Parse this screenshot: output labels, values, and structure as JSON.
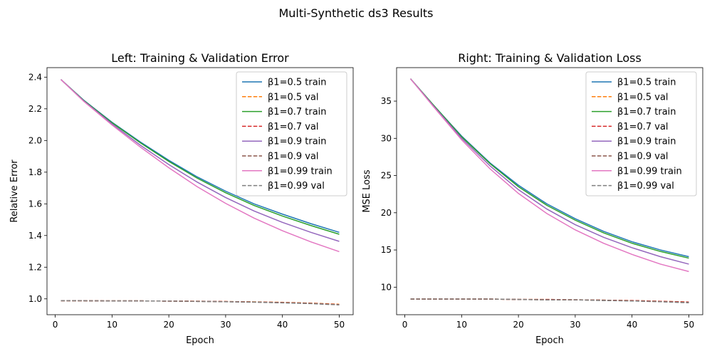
{
  "figure": {
    "title": "Multi-Synthetic ds3 Results"
  },
  "chart_data": [
    {
      "type": "line",
      "title": "Left: Training & Validation Error",
      "xlabel": "Epoch",
      "ylabel": "Relative Error",
      "xlim": [
        -1.45,
        52.45
      ],
      "ylim": [
        0.9,
        2.46
      ],
      "xticks": [
        0,
        10,
        20,
        30,
        40,
        50
      ],
      "yticks": [
        1.0,
        1.2,
        1.4,
        1.6,
        1.8,
        2.0,
        2.2,
        2.4
      ],
      "grid": false,
      "legend_position": "top-right",
      "x": [
        1,
        5,
        10,
        15,
        20,
        25,
        30,
        35,
        40,
        45,
        50
      ],
      "series": [
        {
          "name": "β1=0.5 train",
          "color": "#1f77b4",
          "dash": "solid",
          "values": [
            2.385,
            2.255,
            2.115,
            1.99,
            1.875,
            1.77,
            1.68,
            1.6,
            1.535,
            1.475,
            1.42
          ]
        },
        {
          "name": "β1=0.5 val",
          "color": "#ff7f0e",
          "dash": "dashed",
          "values": [
            0.988,
            0.988,
            0.987,
            0.987,
            0.986,
            0.985,
            0.983,
            0.981,
            0.978,
            0.973,
            0.966
          ]
        },
        {
          "name": "β1=0.7 train",
          "color": "#2ca02c",
          "dash": "solid",
          "values": [
            2.385,
            2.253,
            2.112,
            1.985,
            1.868,
            1.762,
            1.67,
            1.59,
            1.523,
            1.463,
            1.408
          ]
        },
        {
          "name": "β1=0.7 val",
          "color": "#d62728",
          "dash": "dashed",
          "values": [
            0.988,
            0.988,
            0.987,
            0.987,
            0.986,
            0.985,
            0.983,
            0.98,
            0.977,
            0.972,
            0.964
          ]
        },
        {
          "name": "β1=0.9 train",
          "color": "#9467bd",
          "dash": "solid",
          "values": [
            2.385,
            2.25,
            2.105,
            1.97,
            1.848,
            1.737,
            1.64,
            1.555,
            1.483,
            1.42,
            1.363
          ]
        },
        {
          "name": "β1=0.9 val",
          "color": "#8c564b",
          "dash": "dashed",
          "values": [
            0.988,
            0.988,
            0.987,
            0.987,
            0.986,
            0.984,
            0.982,
            0.98,
            0.976,
            0.971,
            0.963
          ]
        },
        {
          "name": "β1=0.99 train",
          "color": "#e377c2",
          "dash": "solid",
          "values": [
            2.385,
            2.248,
            2.098,
            1.958,
            1.828,
            1.708,
            1.603,
            1.51,
            1.43,
            1.36,
            1.298
          ]
        },
        {
          "name": "β1=0.99 val",
          "color": "#7f7f7f",
          "dash": "dashed",
          "values": [
            0.988,
            0.988,
            0.987,
            0.987,
            0.986,
            0.984,
            0.982,
            0.979,
            0.975,
            0.97,
            0.962
          ]
        }
      ]
    },
    {
      "type": "line",
      "title": "Right: Training & Validation Loss",
      "xlabel": "Epoch",
      "ylabel": "MSE Loss",
      "xlim": [
        -1.45,
        52.45
      ],
      "ylim": [
        6.3,
        39.5
      ],
      "xticks": [
        0,
        10,
        20,
        30,
        40,
        50
      ],
      "yticks": [
        10,
        15,
        20,
        25,
        30,
        35
      ],
      "grid": false,
      "legend_position": "top-right",
      "x": [
        1,
        5,
        10,
        15,
        20,
        25,
        30,
        35,
        40,
        45,
        50
      ],
      "series": [
        {
          "name": "β1=0.5 train",
          "color": "#1f77b4",
          "dash": "solid",
          "values": [
            38.0,
            34.5,
            30.3,
            26.7,
            23.7,
            21.2,
            19.2,
            17.5,
            16.1,
            15.0,
            14.1
          ]
        },
        {
          "name": "β1=0.5 val",
          "color": "#ff7f0e",
          "dash": "dashed",
          "values": [
            8.4,
            8.4,
            8.4,
            8.4,
            8.35,
            8.35,
            8.3,
            8.25,
            8.2,
            8.1,
            8.0
          ]
        },
        {
          "name": "β1=0.7 train",
          "color": "#2ca02c",
          "dash": "solid",
          "values": [
            38.0,
            34.5,
            30.2,
            26.6,
            23.5,
            21.0,
            19.0,
            17.3,
            15.9,
            14.8,
            13.9
          ]
        },
        {
          "name": "β1=0.7 val",
          "color": "#d62728",
          "dash": "dashed",
          "values": [
            8.4,
            8.4,
            8.4,
            8.4,
            8.35,
            8.35,
            8.3,
            8.25,
            8.2,
            8.1,
            8.0
          ]
        },
        {
          "name": "β1=0.9 train",
          "color": "#9467bd",
          "dash": "solid",
          "values": [
            38.0,
            34.4,
            30.0,
            26.3,
            23.1,
            20.5,
            18.4,
            16.7,
            15.3,
            14.1,
            13.1
          ]
        },
        {
          "name": "β1=0.9 val",
          "color": "#8c564b",
          "dash": "dashed",
          "values": [
            8.4,
            8.4,
            8.4,
            8.4,
            8.35,
            8.3,
            8.3,
            8.25,
            8.15,
            8.05,
            7.95
          ]
        },
        {
          "name": "β1=0.99 train",
          "color": "#e377c2",
          "dash": "solid",
          "values": [
            38.0,
            34.3,
            29.8,
            25.9,
            22.6,
            19.9,
            17.7,
            15.9,
            14.4,
            13.1,
            12.1
          ]
        },
        {
          "name": "β1=0.99 val",
          "color": "#7f7f7f",
          "dash": "dashed",
          "values": [
            8.4,
            8.4,
            8.4,
            8.4,
            8.35,
            8.3,
            8.3,
            8.2,
            8.15,
            8.05,
            7.9
          ]
        }
      ]
    }
  ]
}
